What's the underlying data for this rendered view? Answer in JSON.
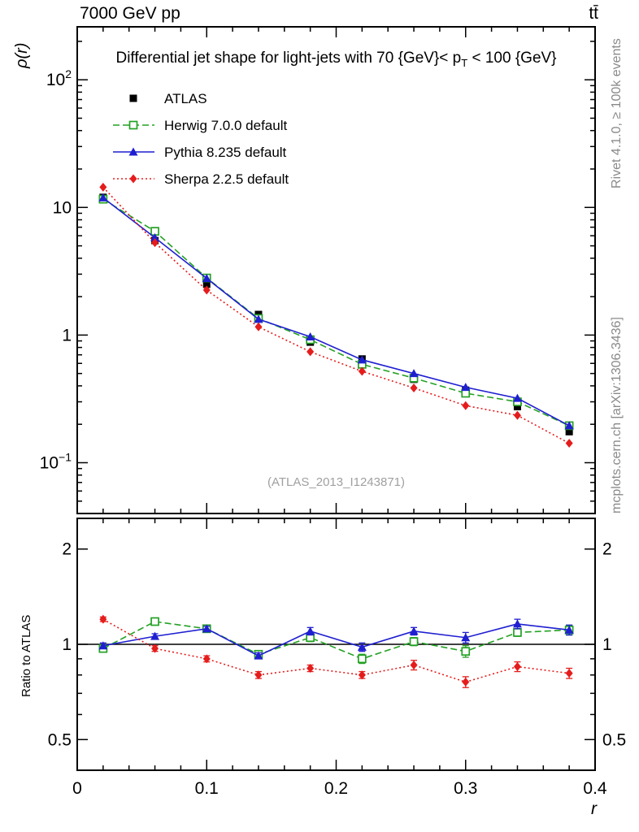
{
  "header": {
    "left": "7000 GeV pp",
    "right": "tt̄"
  },
  "title": {
    "pre": "Differential jet shape for light-jets with 70 {GeV}< p",
    "sub": "T",
    "post": " < 100 {GeV}"
  },
  "watermark": "(ATLAS_2013_I1243871)",
  "side_notes": {
    "top": "Rivet 4.1.0, ≥ 100k events",
    "bottom": "mcplots.cern.ch [arXiv:1306.3436]"
  },
  "chart_data": {
    "type": "line",
    "x": [
      0.02,
      0.06,
      0.1,
      0.14,
      0.18,
      0.22,
      0.26,
      0.3,
      0.34,
      0.38
    ],
    "xlabel": "r",
    "xlim": [
      0,
      0.4
    ],
    "xticks": [
      0,
      0.1,
      0.2,
      0.3,
      0.4
    ],
    "xtick_labels": [
      "0",
      "0.1",
      "0.2",
      "0.3",
      "0.4"
    ],
    "legend_position": "upper-left-inside",
    "grid": false,
    "main": {
      "ylabel": "ρ(r)",
      "yscale": "log",
      "ylim": [
        0.04,
        260
      ],
      "yticks": [
        {
          "value": 100,
          "base": "10",
          "exp": "2"
        },
        {
          "value": 10,
          "base": "10"
        },
        {
          "value": 1,
          "base": "1"
        },
        {
          "value": 0.1,
          "base": "10",
          "exp": "−1"
        }
      ],
      "series": [
        {
          "id": "atlas",
          "name": "ATLAS",
          "marker": "square-filled",
          "line": "none",
          "color": "#000000",
          "values": [
            12.0,
            5.5,
            2.5,
            1.45,
            0.88,
            0.65,
            0.45,
            0.37,
            0.275,
            0.175
          ]
        },
        {
          "id": "herwig",
          "name": "Herwig 7.0.0 default",
          "marker": "square-open",
          "line": "dashed",
          "color": "#24a124",
          "values": [
            11.6,
            6.5,
            2.8,
            1.35,
            0.92,
            0.59,
            0.46,
            0.35,
            0.3,
            0.195
          ]
        },
        {
          "id": "pythia",
          "name": "Pythia 8.235 default",
          "marker": "triangle-filled",
          "line": "solid",
          "color": "#1f1fd1",
          "values": [
            11.9,
            5.8,
            2.78,
            1.33,
            0.97,
            0.64,
            0.5,
            0.39,
            0.32,
            0.195
          ]
        },
        {
          "id": "sherpa",
          "name": "Sherpa 2.2.5 default",
          "marker": "diamond-filled",
          "line": "dotted",
          "color": "#e51c1c",
          "values": [
            14.4,
            5.3,
            2.25,
            1.16,
            0.74,
            0.52,
            0.385,
            0.28,
            0.235,
            0.142
          ]
        }
      ]
    },
    "ratio": {
      "ylabel": "Ratio to ATLAS",
      "yscale": "log",
      "ylim": [
        0.4,
        2.5
      ],
      "yticks": [
        0.5,
        1,
        2
      ],
      "ytick_labels": [
        "0.5",
        "1",
        "2"
      ],
      "yticks_minor": [
        0.4,
        0.6,
        0.7,
        0.8,
        0.9
      ],
      "reference_value": 1,
      "series": [
        {
          "id": "herwig",
          "name": "Herwig 7.0.0 default",
          "marker": "square-open",
          "line": "dashed",
          "color": "#24a124",
          "values": [
            0.97,
            1.18,
            1.12,
            0.93,
            1.05,
            0.9,
            1.02,
            0.95,
            1.09,
            1.11
          ],
          "errors": [
            0.02,
            0.03,
            0.02,
            0.02,
            0.03,
            0.03,
            0.03,
            0.04,
            0.03,
            0.04
          ]
        },
        {
          "id": "pythia",
          "name": "Pythia 8.235 default",
          "marker": "triangle-filled",
          "line": "solid",
          "color": "#1f1fd1",
          "values": [
            0.99,
            1.06,
            1.12,
            0.92,
            1.1,
            0.98,
            1.1,
            1.05,
            1.16,
            1.11
          ],
          "errors": [
            0.02,
            0.02,
            0.02,
            0.02,
            0.03,
            0.03,
            0.03,
            0.04,
            0.04,
            0.04
          ]
        },
        {
          "id": "sherpa",
          "name": "Sherpa 2.2.5 default",
          "marker": "diamond-filled",
          "line": "dotted",
          "color": "#e51c1c",
          "values": [
            1.2,
            0.97,
            0.9,
            0.8,
            0.84,
            0.8,
            0.86,
            0.76,
            0.85,
            0.81
          ],
          "errors": [
            0.02,
            0.02,
            0.02,
            0.02,
            0.02,
            0.02,
            0.03,
            0.03,
            0.03,
            0.03
          ]
        }
      ]
    }
  }
}
